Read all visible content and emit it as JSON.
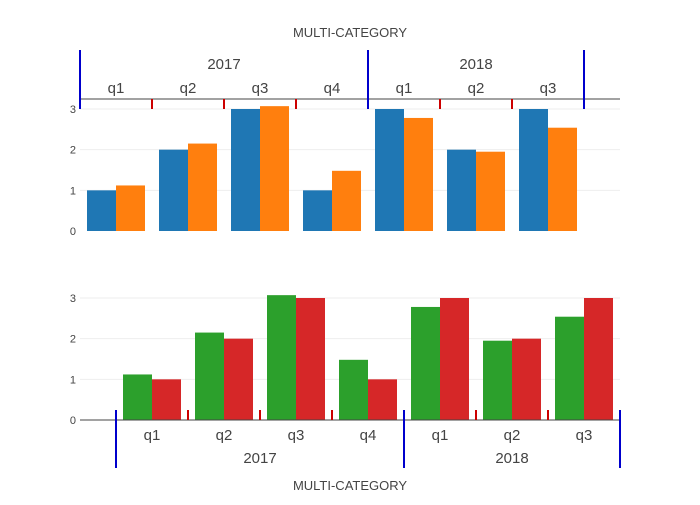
{
  "charts": [
    {
      "id": "top",
      "title": "MULTI-CATEGORY",
      "type": "bar",
      "axis_position": "top",
      "ylim": [
        0,
        3.2
      ],
      "yticks": [
        0,
        1,
        2,
        3
      ],
      "grid": true,
      "groups": [
        {
          "label": "2017",
          "categories": [
            "q1",
            "q2",
            "q3",
            "q4"
          ]
        },
        {
          "label": "2018",
          "categories": [
            "q1",
            "q2",
            "q3"
          ]
        }
      ],
      "series": [
        {
          "color": "#1f77b4",
          "values": [
            1,
            2,
            3,
            1,
            3,
            2,
            3
          ]
        },
        {
          "color": "#ff7f0e",
          "values": [
            1.12,
            2.15,
            3.07,
            1.48,
            2.78,
            1.95,
            2.54
          ]
        }
      ]
    },
    {
      "id": "bottom",
      "title": "MULTI-CATEGORY",
      "type": "bar",
      "axis_position": "bottom",
      "ylim": [
        0,
        3.2
      ],
      "yticks": [
        0,
        1,
        2,
        3
      ],
      "grid": true,
      "groups": [
        {
          "label": "2017",
          "categories": [
            "q1",
            "q2",
            "q3",
            "q4"
          ]
        },
        {
          "label": "2018",
          "categories": [
            "q1",
            "q2",
            "q3"
          ]
        }
      ],
      "series": [
        {
          "color": "#2ca02c",
          "values": [
            1.12,
            2.15,
            3.07,
            1.48,
            2.78,
            1.95,
            2.54
          ]
        },
        {
          "color": "#d62728",
          "values": [
            1,
            2,
            3,
            1,
            3,
            2,
            3
          ]
        }
      ]
    }
  ],
  "colors": {
    "axis": "#444444",
    "grid": "#eeeeee",
    "tick_divider": "#cc0000",
    "group_divider": "#0000cc",
    "text": "#444444"
  }
}
